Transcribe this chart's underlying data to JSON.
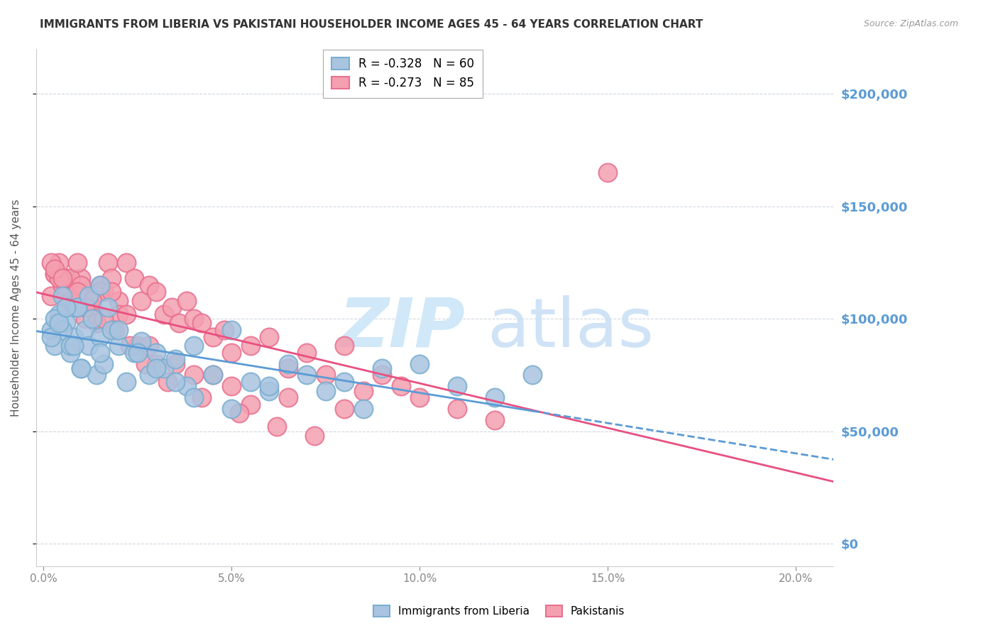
{
  "title": "IMMIGRANTS FROM LIBERIA VS PAKISTANI HOUSEHOLDER INCOME AGES 45 - 64 YEARS CORRELATION CHART",
  "source": "Source: ZipAtlas.com",
  "ylabel": "Householder Income Ages 45 - 64 years",
  "xlabel_ticks": [
    "0.0%",
    "5.0%",
    "10.0%",
    "15.0%",
    "20.0%"
  ],
  "xlabel_vals": [
    0.0,
    0.05,
    0.1,
    0.15,
    0.2
  ],
  "ytick_labels": [
    "$0",
    "$50,000",
    "$100,000",
    "$150,000",
    "$200,000"
  ],
  "ytick_vals": [
    0,
    50000,
    100000,
    150000,
    200000
  ],
  "ylim": [
    -10000,
    220000
  ],
  "xlim": [
    -0.002,
    0.21
  ],
  "legend_entries": [
    {
      "label": "R = -0.328   N = 60",
      "color": "#a8c4e0"
    },
    {
      "label": "R = -0.273   N = 85",
      "color": "#f4a0b0"
    }
  ],
  "liberia_color": "#a8c4e0",
  "liberia_edge": "#7aaed0",
  "pakistani_color": "#f4a0b0",
  "pakistani_edge": "#e87090",
  "regression_liberia_color": "#5b9bd5",
  "regression_pakistani_color": "#e85080",
  "watermark_color": "#d0e8f8",
  "grid_color": "#d0d8e0",
  "right_label_color": "#5b9bd5",
  "background_color": "#ffffff",
  "liberia_x": [
    0.002,
    0.003,
    0.004,
    0.005,
    0.006,
    0.007,
    0.008,
    0.009,
    0.01,
    0.011,
    0.012,
    0.013,
    0.014,
    0.015,
    0.016,
    0.017,
    0.018,
    0.02,
    0.022,
    0.024,
    0.026,
    0.028,
    0.03,
    0.032,
    0.035,
    0.038,
    0.04,
    0.045,
    0.05,
    0.055,
    0.06,
    0.065,
    0.07,
    0.08,
    0.085,
    0.09,
    0.1,
    0.11,
    0.12,
    0.13,
    0.003,
    0.005,
    0.007,
    0.009,
    0.012,
    0.015,
    0.02,
    0.025,
    0.03,
    0.035,
    0.04,
    0.05,
    0.06,
    0.075,
    0.002,
    0.004,
    0.006,
    0.008,
    0.01,
    0.015
  ],
  "liberia_y": [
    95000,
    88000,
    102000,
    110000,
    98000,
    85000,
    92000,
    105000,
    78000,
    95000,
    88000,
    100000,
    75000,
    92000,
    80000,
    105000,
    95000,
    88000,
    72000,
    85000,
    90000,
    75000,
    85000,
    78000,
    82000,
    70000,
    88000,
    75000,
    95000,
    72000,
    68000,
    80000,
    75000,
    72000,
    60000,
    78000,
    80000,
    70000,
    65000,
    75000,
    100000,
    95000,
    88000,
    105000,
    110000,
    115000,
    95000,
    85000,
    78000,
    72000,
    65000,
    60000,
    70000,
    68000,
    92000,
    98000,
    105000,
    88000,
    78000,
    85000
  ],
  "pakistani_x": [
    0.002,
    0.003,
    0.004,
    0.005,
    0.006,
    0.007,
    0.008,
    0.009,
    0.01,
    0.011,
    0.012,
    0.013,
    0.014,
    0.015,
    0.016,
    0.017,
    0.018,
    0.02,
    0.022,
    0.024,
    0.026,
    0.028,
    0.03,
    0.032,
    0.034,
    0.036,
    0.038,
    0.04,
    0.042,
    0.045,
    0.048,
    0.05,
    0.055,
    0.06,
    0.065,
    0.07,
    0.075,
    0.08,
    0.085,
    0.09,
    0.095,
    0.1,
    0.11,
    0.12,
    0.003,
    0.005,
    0.007,
    0.009,
    0.012,
    0.015,
    0.02,
    0.025,
    0.03,
    0.04,
    0.05,
    0.065,
    0.08,
    0.004,
    0.006,
    0.008,
    0.01,
    0.013,
    0.018,
    0.022,
    0.028,
    0.035,
    0.045,
    0.055,
    0.15,
    0.002,
    0.003,
    0.005,
    0.007,
    0.009,
    0.011,
    0.014,
    0.016,
    0.019,
    0.023,
    0.027,
    0.033,
    0.042,
    0.052,
    0.062,
    0.072
  ],
  "pakistani_y": [
    110000,
    120000,
    125000,
    115000,
    118000,
    108000,
    112000,
    105000,
    118000,
    100000,
    110000,
    105000,
    98000,
    115000,
    112000,
    125000,
    118000,
    108000,
    125000,
    118000,
    108000,
    115000,
    112000,
    102000,
    105000,
    98000,
    108000,
    100000,
    98000,
    92000,
    95000,
    85000,
    88000,
    92000,
    78000,
    85000,
    75000,
    88000,
    68000,
    75000,
    70000,
    65000,
    60000,
    55000,
    120000,
    115000,
    118000,
    125000,
    108000,
    112000,
    102000,
    88000,
    80000,
    75000,
    70000,
    65000,
    60000,
    118000,
    110000,
    105000,
    115000,
    108000,
    112000,
    102000,
    88000,
    80000,
    75000,
    62000,
    165000,
    125000,
    122000,
    118000,
    108000,
    112000,
    105000,
    98000,
    100000,
    95000,
    88000,
    80000,
    72000,
    65000,
    58000,
    52000,
    48000
  ]
}
